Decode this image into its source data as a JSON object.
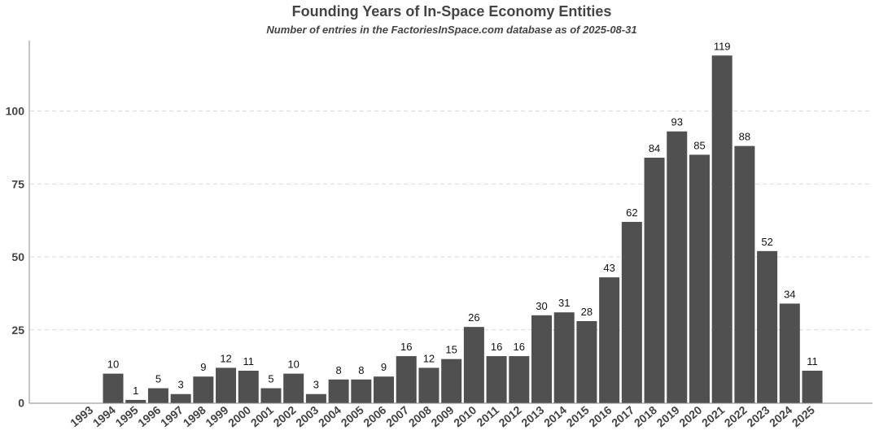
{
  "chart_data": {
    "type": "bar",
    "title": "Founding Years of In-Space Economy Entities",
    "subtitle": "Number of entries in the FactoriesInSpace.com database as of 2025-08-31",
    "xlabel": "",
    "ylabel": "",
    "categories": [
      "1993",
      "1994",
      "1995",
      "1996",
      "1997",
      "1998",
      "1999",
      "2000",
      "2001",
      "2002",
      "2003",
      "2004",
      "2005",
      "2006",
      "2007",
      "2008",
      "2009",
      "2010",
      "2011",
      "2012",
      "2013",
      "2014",
      "2015",
      "2016",
      "2017",
      "2018",
      "2019",
      "2020",
      "2021",
      "2022",
      "2023",
      "2024",
      "2025"
    ],
    "values": [
      0,
      10,
      1,
      5,
      3,
      9,
      12,
      11,
      5,
      10,
      3,
      8,
      8,
      9,
      16,
      12,
      15,
      26,
      16,
      16,
      30,
      31,
      28,
      43,
      62,
      84,
      93,
      85,
      119,
      88,
      52,
      34,
      11
    ],
    "show_data_labels_for_zero": false,
    "yticks": [
      0,
      25,
      50,
      75,
      100
    ],
    "ylim": [
      0,
      125
    ],
    "grid": "horizontal dashed",
    "legend": "none",
    "bar_color": "#505050",
    "grid_color": "#d9d9d9",
    "text_color": "#444444"
  }
}
